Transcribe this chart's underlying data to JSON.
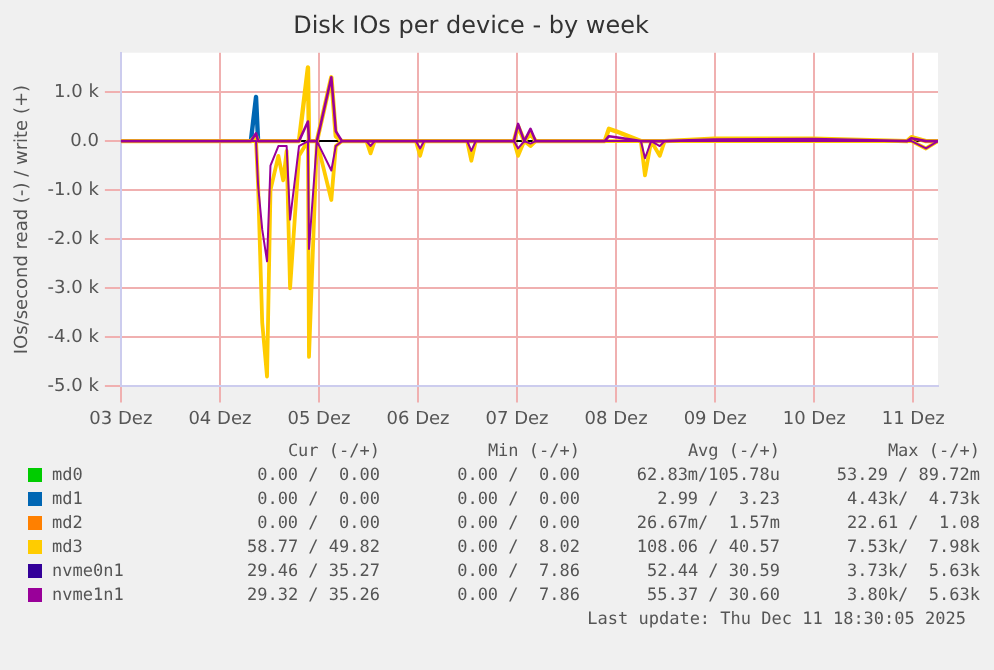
{
  "chart_data": {
    "type": "line",
    "title": "Disk IOs per device - by week",
    "ylabel": "IOs/second read (-) / write (+)",
    "x": [
      "2025-12-03T12:00",
      "2025-12-04T19:30",
      "2025-12-04T20:45",
      "2025-12-04T21:15",
      "2025-12-04T22:15",
      "2025-12-04T23:25",
      "2025-12-05T00:15",
      "2025-12-05T02:10",
      "2025-12-05T03:20",
      "2025-12-05T04:10",
      "2025-12-05T05:00",
      "2025-12-05T07:10",
      "2025-12-05T09:20",
      "2025-12-05T09:35",
      "2025-12-05T11:30",
      "2025-12-05T15:00",
      "2025-12-05T16:05",
      "2025-12-05T17:35",
      "2025-12-05T23:30",
      "2025-12-06T00:30",
      "2025-12-06T01:30",
      "2025-12-06T11:30",
      "2025-12-06T12:30",
      "2025-12-06T13:30",
      "2025-12-06T23:55",
      "2025-12-07T00:55",
      "2025-12-07T02:00",
      "2025-12-07T11:15",
      "2025-12-07T12:15",
      "2025-12-07T13:45",
      "2025-12-07T15:15",
      "2025-12-07T16:30",
      "2025-12-08T09:15",
      "2025-12-08T10:15",
      "2025-12-08T12:00",
      "2025-12-08T18:00",
      "2025-12-08T19:00",
      "2025-12-08T20:30",
      "2025-12-08T22:35",
      "2025-12-08T23:45",
      "2025-12-09T11:45",
      "2025-12-10T11:45",
      "2025-12-11T10:30",
      "2025-12-11T11:35",
      "2025-12-11T15:05",
      "2025-12-11T18:00"
    ],
    "series": [
      {
        "name": "md0",
        "color": "#00cc00",
        "values": [
          null,
          null,
          null,
          null,
          null,
          null,
          null,
          null,
          null,
          null,
          null,
          null,
          null,
          null,
          null,
          null,
          null,
          null,
          null,
          null,
          null,
          null,
          null,
          null,
          null,
          null,
          null,
          null,
          null,
          null,
          null,
          null,
          null,
          null,
          null,
          null,
          null,
          null,
          null,
          null,
          null,
          null,
          null,
          null,
          null,
          null
        ]
      },
      {
        "name": "md1",
        "color": "#0066b3",
        "values": [
          null,
          0,
          900,
          0,
          null,
          null,
          null,
          null,
          null,
          null,
          null,
          null,
          null,
          null,
          null,
          null,
          null,
          null,
          null,
          null,
          null,
          null,
          null,
          null,
          null,
          null,
          null,
          null,
          null,
          null,
          null,
          null,
          null,
          null,
          null,
          null,
          null,
          null,
          null,
          null,
          null,
          null,
          null,
          null,
          null,
          null
        ]
      },
      {
        "name": "md2",
        "color": "#ff8000",
        "values": [
          null,
          null,
          null,
          null,
          null,
          null,
          null,
          null,
          null,
          null,
          null,
          null,
          null,
          null,
          null,
          null,
          null,
          null,
          null,
          null,
          null,
          null,
          null,
          null,
          null,
          null,
          null,
          null,
          null,
          null,
          null,
          null,
          null,
          null,
          null,
          null,
          null,
          null,
          null,
          null,
          null,
          null,
          null,
          null,
          null,
          null
        ]
      },
      {
        "name": "md3",
        "color": "#ffcc00",
        "values": [
          0,
          0,
          100,
          0,
          0,
          0,
          0,
          0,
          0,
          0,
          0,
          0,
          1500,
          0,
          0,
          1300,
          100,
          0,
          0,
          0,
          0,
          0,
          0,
          0,
          0,
          0,
          0,
          0,
          300,
          0,
          150,
          0,
          0,
          250,
          200,
          0,
          0,
          0,
          0,
          0,
          50,
          50,
          0,
          80,
          0,
          0
        ]
      },
      {
        "color": "#ffcc00",
        "values": [
          0,
          0,
          0,
          -900,
          -3700,
          -4800,
          -1000,
          -300,
          -800,
          -200,
          -3000,
          -300,
          0,
          -4400,
          0,
          -1200,
          -100,
          0,
          0,
          -250,
          0,
          0,
          -300,
          0,
          0,
          -400,
          0,
          0,
          -300,
          0,
          -100,
          0,
          0,
          0,
          0,
          0,
          -700,
          0,
          -300,
          0,
          0,
          0,
          0,
          0,
          -150,
          0
        ]
      },
      {
        "name": "nvme0n1",
        "color": "#330099",
        "values": [
          null,
          null,
          null,
          null,
          null,
          null,
          null,
          null,
          null,
          null,
          null,
          null,
          null,
          null,
          null,
          null,
          null,
          null,
          null,
          null,
          null,
          null,
          null,
          null,
          null,
          null,
          null,
          null,
          null,
          null,
          null,
          null,
          null,
          null,
          null,
          null,
          null,
          null,
          null,
          null,
          null,
          null,
          null,
          null,
          null,
          null
        ]
      },
      {
        "name": "nvme1n1",
        "color": "#990099",
        "values": [
          0,
          0,
          160,
          0,
          0,
          0,
          0,
          0,
          0,
          0,
          0,
          0,
          400,
          0,
          0,
          1300,
          200,
          0,
          0,
          0,
          0,
          0,
          0,
          0,
          0,
          0,
          0,
          0,
          350,
          0,
          250,
          0,
          0,
          100,
          80,
          0,
          0,
          0,
          0,
          0,
          30,
          40,
          0,
          60,
          0,
          0
        ]
      },
      {
        "color": "#990099",
        "values": [
          0,
          0,
          0,
          -900,
          -1800,
          -2450,
          -500,
          -100,
          -100,
          -100,
          -1600,
          -100,
          0,
          -2200,
          0,
          -600,
          -100,
          0,
          0,
          -100,
          0,
          0,
          -150,
          0,
          0,
          -200,
          0,
          0,
          -150,
          0,
          -50,
          0,
          0,
          0,
          0,
          0,
          -350,
          0,
          -100,
          0,
          0,
          0,
          0,
          0,
          -150,
          0
        ]
      }
    ],
    "xlim": [
      "2025-12-03T12:00",
      "2025-12-11T18:00"
    ],
    "xticks": [
      {
        "value": "2025-12-03T12:00",
        "label": "03 Dez"
      },
      {
        "value": "2025-12-04T12:00",
        "label": "04 Dez"
      },
      {
        "value": "2025-12-05T12:00",
        "label": "05 Dez"
      },
      {
        "value": "2025-12-06T12:00",
        "label": "06 Dez"
      },
      {
        "value": "2025-12-07T12:00",
        "label": "07 Dez"
      },
      {
        "value": "2025-12-08T12:00",
        "label": "08 Dez"
      },
      {
        "value": "2025-12-09T12:00",
        "label": "09 Dez"
      },
      {
        "value": "2025-12-10T12:00",
        "label": "10 Dez"
      },
      {
        "value": "2025-12-11T12:00",
        "label": "11 Dez"
      }
    ],
    "ylim": [
      -5000,
      1800
    ],
    "yticks": [
      {
        "value": -5000,
        "label": "-5.0 k"
      },
      {
        "value": -4000,
        "label": "-4.0 k"
      },
      {
        "value": -3000,
        "label": "-3.0 k"
      },
      {
        "value": -2000,
        "label": "-2.0 k"
      },
      {
        "value": -1000,
        "label": "-1.0 k"
      },
      {
        "value": 0,
        "label": "0.0"
      },
      {
        "value": 1000,
        "label": "1.0 k"
      }
    ],
    "grid": true,
    "legend": "bottom",
    "marker": "none",
    "line_style": "solid",
    "annotations": [
      "Cur (-/+)",
      "Min (-/+)",
      "Avg (-/+)",
      "Max (-/+)",
      "0.00 /  0.00",
      "0.00 /  0.00",
      "62.83m/105.78u",
      "53.29 / 89.72m",
      "0.00 /  0.00",
      "0.00 /  0.00",
      "2.99 /  3.23",
      "4.43k/  4.73k",
      "0.00 /  0.00",
      "0.00 /  0.00",
      "26.67m/  1.57m",
      "22.61 /  1.08",
      "58.77 / 49.82",
      "0.00 /  8.02",
      "108.06 / 40.57",
      "7.53k/  7.98k",
      "29.46 / 35.27",
      "0.00 /  7.86",
      "52.44 / 30.59",
      "3.73k/  5.63k",
      "29.32 / 35.26",
      "0.00 /  7.86",
      "55.37 / 30.60",
      "3.80k/  5.63k",
      "Last update: Thu Dec 11 18:30:05 2025"
    ]
  }
}
